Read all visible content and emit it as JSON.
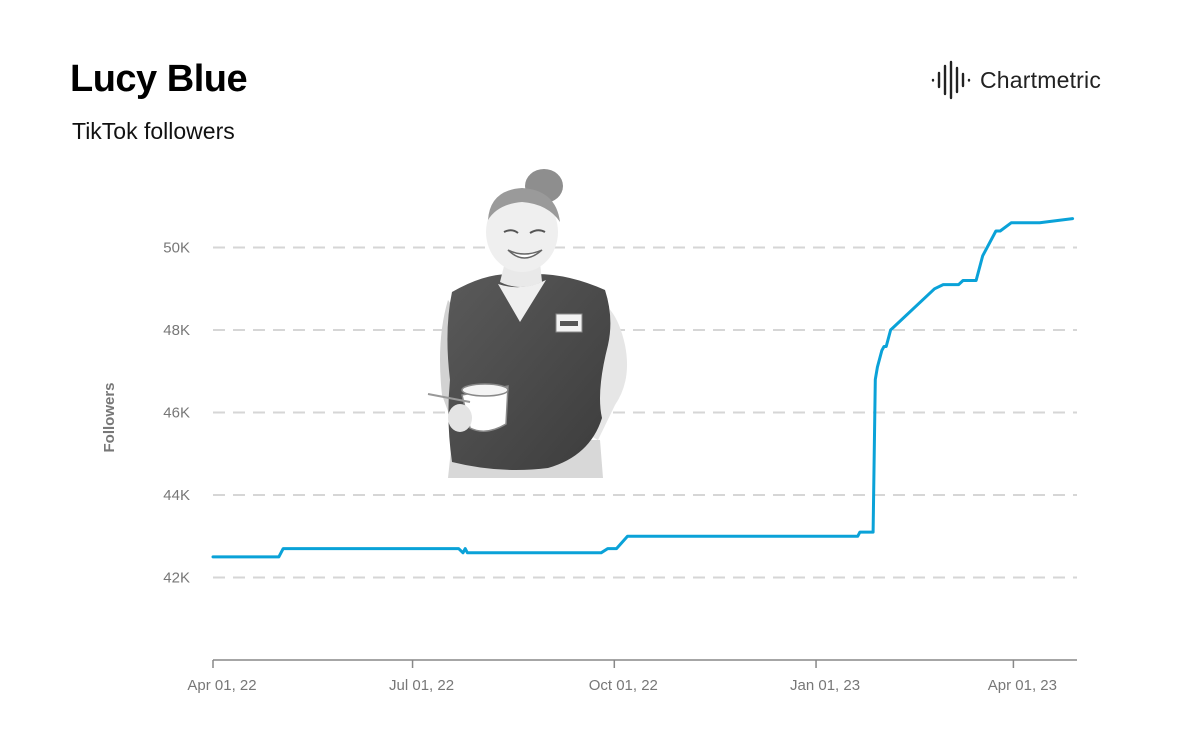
{
  "header": {
    "title": "Lucy Blue",
    "subtitle": "TikTok followers"
  },
  "brand": {
    "name": "Chartmetric",
    "icon": "chartmetric-logo-icon"
  },
  "photo": {
    "icon": "artist-photo"
  },
  "colors": {
    "line": "#0aa2d8",
    "grid": "#d6d6d6",
    "axis": "#888888",
    "text": "#777777"
  },
  "chart_data": {
    "type": "line",
    "title": "Lucy Blue",
    "subtitle": "TikTok followers",
    "xlabel": "",
    "ylabel": "Followers",
    "xlim": [
      "2022-04-01",
      "2023-04-30"
    ],
    "ylim": [
      40000,
      52000
    ],
    "grid": true,
    "legend": "none",
    "x_ticks": [
      {
        "date": "2022-04-01",
        "label": "Apr 01, 22"
      },
      {
        "date": "2022-07-01",
        "label": "Jul 01, 22"
      },
      {
        "date": "2022-10-01",
        "label": "Oct 01, 22"
      },
      {
        "date": "2023-01-01",
        "label": "Jan 01, 23"
      },
      {
        "date": "2023-04-01",
        "label": "Apr 01, 23"
      }
    ],
    "y_ticks": [
      {
        "value": 42000,
        "label": "42K"
      },
      {
        "value": 44000,
        "label": "44K"
      },
      {
        "value": 46000,
        "label": "46K"
      },
      {
        "value": 48000,
        "label": "48K"
      },
      {
        "value": 50000,
        "label": "50K"
      }
    ],
    "series": [
      {
        "points": [
          [
            "2022-04-01",
            42500
          ],
          [
            "2022-05-01",
            42500
          ],
          [
            "2022-05-03",
            42700
          ],
          [
            "2022-07-22",
            42700
          ],
          [
            "2022-07-24",
            42600
          ],
          [
            "2022-07-25",
            42700
          ],
          [
            "2022-07-26",
            42600
          ],
          [
            "2022-09-25",
            42600
          ],
          [
            "2022-09-28",
            42700
          ],
          [
            "2022-10-02",
            42700
          ],
          [
            "2022-10-07",
            43000
          ],
          [
            "2023-01-20",
            43000
          ],
          [
            "2023-01-21",
            43100
          ],
          [
            "2023-01-27",
            43100
          ],
          [
            "2023-01-28",
            46800
          ],
          [
            "2023-01-29",
            47100
          ],
          [
            "2023-01-31",
            47500
          ],
          [
            "2023-02-01",
            47600
          ],
          [
            "2023-02-02",
            47600
          ],
          [
            "2023-02-04",
            48000
          ],
          [
            "2023-02-24",
            49000
          ],
          [
            "2023-02-28",
            49100
          ],
          [
            "2023-03-07",
            49100
          ],
          [
            "2023-03-09",
            49200
          ],
          [
            "2023-03-15",
            49200
          ],
          [
            "2023-03-18",
            49800
          ],
          [
            "2023-03-24",
            50400
          ],
          [
            "2023-03-26",
            50400
          ],
          [
            "2023-03-31",
            50600
          ],
          [
            "2023-04-13",
            50600
          ],
          [
            "2023-04-28",
            50700
          ]
        ]
      }
    ]
  }
}
